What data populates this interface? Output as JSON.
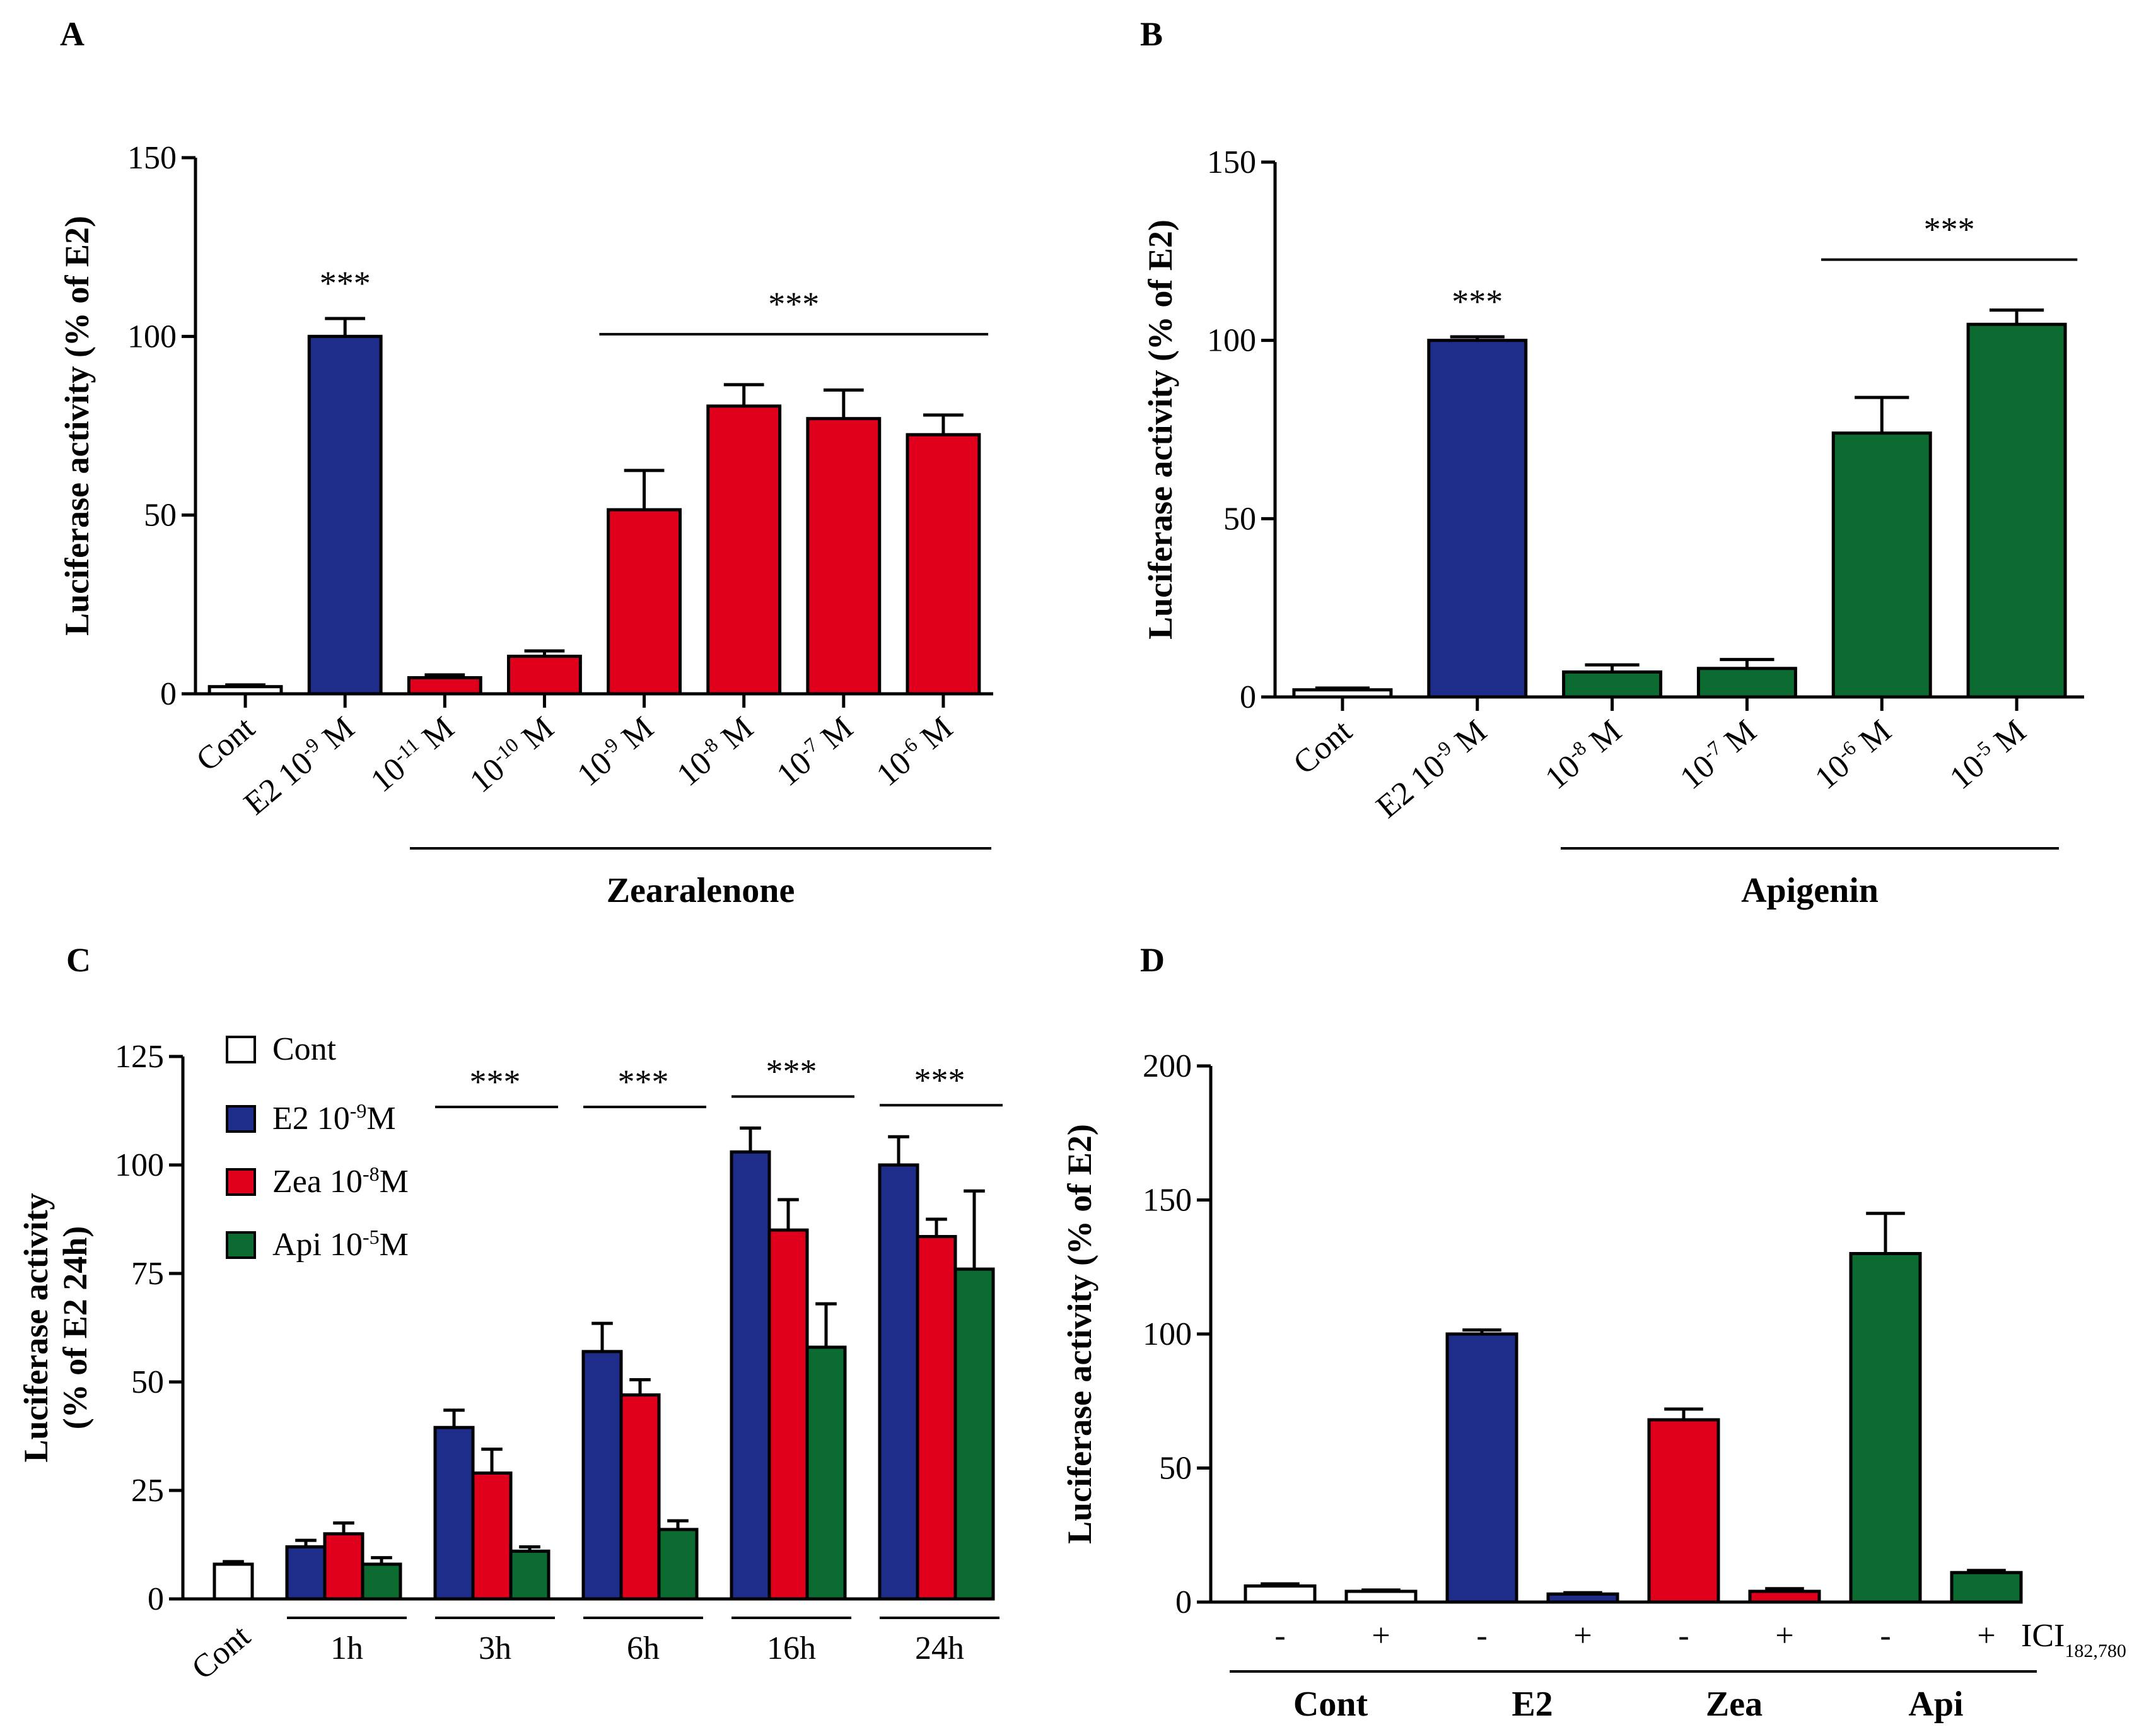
{
  "colors": {
    "cont": "#ffffff",
    "e2": "#1f2d8a",
    "zea": "#e0001b",
    "api": "#0b6b31",
    "ink": "#000000"
  },
  "chart_data": [
    {
      "panel": "A",
      "type": "bar",
      "ylabel": "Luciferase activity (% of E2)",
      "ylim": [
        0,
        150
      ],
      "yticks": [
        "0",
        "50",
        "100",
        "150"
      ],
      "categories": [
        {
          "base": "Cont",
          "sup": "",
          "unit": ""
        },
        {
          "base": "E2 10",
          "sup": "-9",
          "unit": " M"
        },
        {
          "base": "10",
          "sup": "-11",
          "unit": " M"
        },
        {
          "base": "10",
          "sup": "-10",
          "unit": " M"
        },
        {
          "base": "10",
          "sup": "-9",
          "unit": " M"
        },
        {
          "base": "10",
          "sup": "-8",
          "unit": " M"
        },
        {
          "base": "10",
          "sup": "-7",
          "unit": " M"
        },
        {
          "base": "10",
          "sup": "-6",
          "unit": " M"
        }
      ],
      "values": [
        2,
        100,
        4.5,
        10.5,
        51.5,
        80.5,
        77,
        72.5
      ],
      "errors": [
        0.5,
        5,
        0.8,
        1.5,
        11,
        6,
        8,
        5.5
      ],
      "colors": [
        "cont",
        "e2",
        "zea",
        "zea",
        "zea",
        "zea",
        "zea",
        "zea"
      ],
      "group_label": "Zearalenone",
      "significance": [
        {
          "label": "***",
          "from": 1,
          "to": 1
        },
        {
          "label": "***",
          "from": 4,
          "to": 7
        }
      ]
    },
    {
      "panel": "B",
      "type": "bar",
      "ylabel": "Luciferase activity (% of E2)",
      "ylim": [
        0,
        150
      ],
      "yticks": [
        "0",
        "50",
        "100",
        "150"
      ],
      "categories": [
        {
          "base": "Cont",
          "sup": "",
          "unit": ""
        },
        {
          "base": "E2 10",
          "sup": "-9",
          "unit": " M"
        },
        {
          "base": "10",
          "sup": "-8",
          "unit": " M"
        },
        {
          "base": "10",
          "sup": "-7",
          "unit": " M"
        },
        {
          "base": "10",
          "sup": "-6",
          "unit": " M"
        },
        {
          "base": "10",
          "sup": "-5",
          "unit": " M"
        }
      ],
      "values": [
        2,
        100,
        7,
        8,
        74,
        104.5
      ],
      "errors": [
        0.5,
        1,
        2,
        2.5,
        10,
        4
      ],
      "colors": [
        "cont",
        "e2",
        "api",
        "api",
        "api",
        "api"
      ],
      "group_label": "Apigenin",
      "significance": [
        {
          "label": "***",
          "from": 1,
          "to": 1
        },
        {
          "label": "***",
          "from": 4,
          "to": 5
        }
      ]
    },
    {
      "panel": "C",
      "type": "bar",
      "ylabel_lines": [
        "Luciferase activity",
        "(% of E2 24h)"
      ],
      "ylim": [
        0,
        125
      ],
      "yticks": [
        "0",
        "25",
        "50",
        "75",
        "100",
        "125"
      ],
      "cont": {
        "label": "Cont",
        "value": 8,
        "error": 0.6
      },
      "groups": [
        "1h",
        "3h",
        "6h",
        "16h",
        "24h"
      ],
      "series": [
        {
          "key": "e2",
          "legend": {
            "base": "E2 10",
            "sup": "-9",
            "unit": "M"
          },
          "values": [
            12,
            39.5,
            57,
            103,
            100
          ],
          "errors": [
            1.5,
            4,
            6.5,
            5.5,
            6.5
          ]
        },
        {
          "key": "zea",
          "legend": {
            "base": "Zea 10",
            "sup": "-8",
            "unit": "M"
          },
          "values": [
            15,
            29,
            47,
            85,
            83.5
          ],
          "errors": [
            2.5,
            5.5,
            3.5,
            7,
            4
          ]
        },
        {
          "key": "api",
          "legend": {
            "base": "Api 10",
            "sup": "-5",
            "unit": "M"
          },
          "values": [
            8,
            11,
            16,
            58,
            76
          ],
          "errors": [
            1.5,
            1,
            2,
            10,
            18
          ]
        }
      ],
      "legend_cont": "Cont",
      "significance": [
        {
          "label": "***",
          "group": 1
        },
        {
          "label": "***",
          "group": 2
        },
        {
          "label": "***",
          "group": 3
        },
        {
          "label": "***",
          "group": 4
        }
      ]
    },
    {
      "panel": "D",
      "type": "bar",
      "ylabel": "Luciferase activity (% of E2)",
      "ylim": [
        0,
        200
      ],
      "yticks": [
        "0",
        "50",
        "100",
        "150",
        "200"
      ],
      "groups": [
        "Cont",
        "E2",
        "Zea",
        "Api"
      ],
      "signs": [
        "-",
        "+"
      ],
      "treatment_label": {
        "base": "ICI",
        "sub": "182,780"
      },
      "values": [
        6,
        4,
        100,
        3,
        68,
        4,
        130,
        11
      ],
      "errors": [
        0.8,
        0.5,
        1.5,
        0.5,
        4,
        1,
        15,
        0.8
      ],
      "colors": [
        "cont",
        "cont",
        "e2",
        "e2",
        "zea",
        "zea",
        "api",
        "api"
      ]
    }
  ]
}
